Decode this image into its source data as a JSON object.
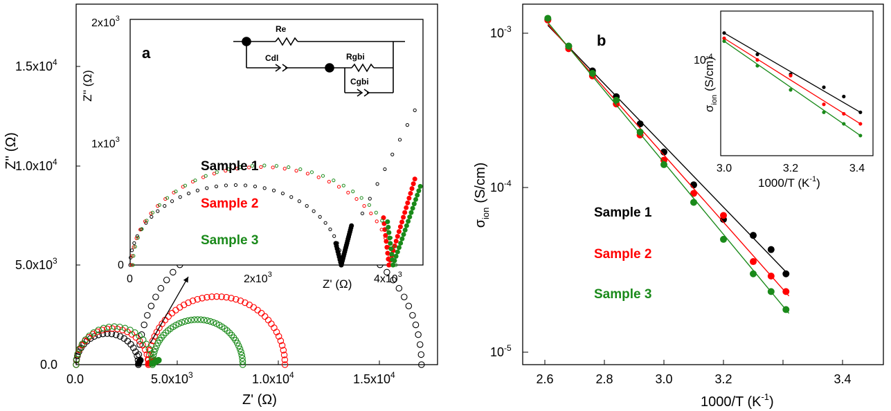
{
  "colors": {
    "sample1": "#000000",
    "sample2": "#ff0000",
    "sample3": "#1a8a1a"
  },
  "panel_a": {
    "label": "a",
    "ylabel": "Z'' (Ω)",
    "xlabel": "Z' (Ω)",
    "xticks": [
      "0.0",
      "5.0x10",
      "1.0x10",
      "1.5x10"
    ],
    "xtick_exp": "4",
    "xtick_exp_first": "3",
    "yticks": [
      "0.0",
      "5.0x10",
      "1.0x10",
      "1.5x10"
    ],
    "ytick_exp_first": "3",
    "ytick_exp": "4",
    "inset_ylabel": "Z'' (Ω)",
    "inset_xlabel": "Z' (Ω)",
    "inset_xticks": [
      "0",
      "2x10",
      "4x10"
    ],
    "inset_yticks": [
      "0",
      "1x10",
      "2x10"
    ],
    "inset_exp": "3",
    "circuit": {
      "re": "Re",
      "cdl": "Cdl",
      "rgbi": "Rgbi",
      "cgbi": "Cgbi"
    },
    "legend": [
      "Sample 1",
      "Sample 2",
      "Sample 3"
    ]
  },
  "panel_b": {
    "label": "b",
    "ylabel_main": "σ",
    "ylabel_sub": "ion",
    "ylabel_unit": "(S/cm)",
    "xlabel": "1000/T (K",
    "xlabel_exp": "-1",
    "xlabel_close": ")",
    "xticks": [
      "2.6",
      "2.8",
      "3.0",
      "3.2",
      "3.4"
    ],
    "yticks": [
      "10",
      "10",
      "10"
    ],
    "ytick_exps": [
      "-3",
      "-4",
      "-5"
    ],
    "inset_ytick": "10",
    "inset_ytick_exp": "-4",
    "inset_xticks": [
      "3.0",
      "3.2",
      "3.4"
    ],
    "inset_xlabel": "1000/T (K",
    "legend": [
      "Sample 1",
      "Sample 2",
      "Sample 3"
    ]
  },
  "chart_data": [
    {
      "type": "scatter",
      "title": "",
      "xlabel": "Z' (Ω)",
      "ylabel": "Z'' (Ω)",
      "xlim": [
        0,
        18000
      ],
      "ylim": [
        0,
        18000
      ],
      "series": [
        {
          "name": "Sample 1",
          "semicircles": [
            {
              "start": 0,
              "end": 3100
            },
            {
              "start": 3100,
              "end": 17200
            }
          ],
          "tail_end_x": 3200
        },
        {
          "name": "Sample 2",
          "semicircles": [
            {
              "start": 0,
              "end": 3600
            },
            {
              "start": 3600,
              "end": 10400
            }
          ],
          "tail_end_x": 3900
        },
        {
          "name": "Sample 3",
          "semicircles": [
            {
              "start": 0,
              "end": 3800
            },
            {
              "start": 3800,
              "end": 8300
            }
          ],
          "tail_end_x": 4100
        }
      ],
      "inset": {
        "xlim": [
          0,
          4300
        ],
        "ylim": [
          0,
          2000
        ],
        "series": [
          {
            "name": "Sample 1",
            "semicircle": {
              "start": 0,
              "end": 3100
            },
            "tail_start": 3100,
            "tail_end_x": 3250,
            "tail_end_y": 320
          },
          {
            "name": "Sample 2",
            "semicircle": {
              "start": 0,
              "end": 3800
            },
            "tail_start": 3800,
            "tail_end_x": 4180,
            "tail_end_y": 700
          },
          {
            "name": "Sample 3",
            "semicircle": {
              "start": 0,
              "end": 3860
            },
            "tail_start": 3860,
            "tail_end_x": 4260,
            "tail_end_y": 640
          }
        ]
      }
    },
    {
      "type": "scatter",
      "title": "",
      "xlabel": "1000/T (K-1)",
      "ylabel": "σion (S/cm)",
      "xlim": [
        2.5,
        3.45
      ],
      "ylim": [
        1e-05,
        0.002
      ],
      "yscale": "log",
      "x": [
        2.61,
        2.68,
        2.76,
        2.84,
        2.92,
        3.0,
        3.1,
        3.2,
        3.3,
        3.36,
        3.41
      ],
      "series": [
        {
          "name": "Sample 1",
          "values": [
            0.00122,
            0.00083,
            0.00058,
            0.0004,
            0.00027,
            0.00018,
            0.000112,
            6.8e-05,
            5.4e-05,
            4.4e-05,
            3.1e-05
          ],
          "fit": [
            [
              2.61,
              0.00112
            ],
            [
              3.42,
              3.05e-05
            ]
          ]
        },
        {
          "name": "Sample 2",
          "values": [
            0.00121,
            0.0008,
            0.00054,
            0.00036,
            0.00023,
            0.00016,
            9.9e-05,
            7.2e-05,
            3.7e-05,
            3e-05,
            2.4e-05
          ],
          "fit": [
            [
              2.61,
              0.00114
            ],
            [
              3.42,
              2.25e-05
            ]
          ]
        },
        {
          "name": "Sample 3",
          "values": [
            0.00124,
            0.00083,
            0.00056,
            0.00038,
            0.00024,
            0.00015,
            8.7e-05,
            5.1e-05,
            3.1e-05,
            2.4e-05,
            1.85e-05
          ],
          "fit": [
            [
              2.61,
              0.00117
            ],
            [
              3.42,
              1.75e-05
            ]
          ]
        }
      ],
      "inset": {
        "xlim": [
          3.0,
          3.43
        ],
        "x": [
          3.0,
          3.1,
          3.2,
          3.3,
          3.36,
          3.41
        ],
        "series": [
          {
            "name": "Sample 1",
            "values": [
              0.00018,
              0.000112,
              7.2e-05,
              5.4e-05,
              4.4e-05,
              3.1e-05
            ]
          },
          {
            "name": "Sample 2",
            "values": [
              0.00016,
              9.9e-05,
              7e-05,
              3.7e-05,
              3e-05,
              2.4e-05
            ]
          },
          {
            "name": "Sample 3",
            "values": [
              0.00015,
              8.7e-05,
              5.1e-05,
              3.1e-05,
              2.4e-05,
              1.85e-05
            ]
          }
        ]
      }
    }
  ]
}
